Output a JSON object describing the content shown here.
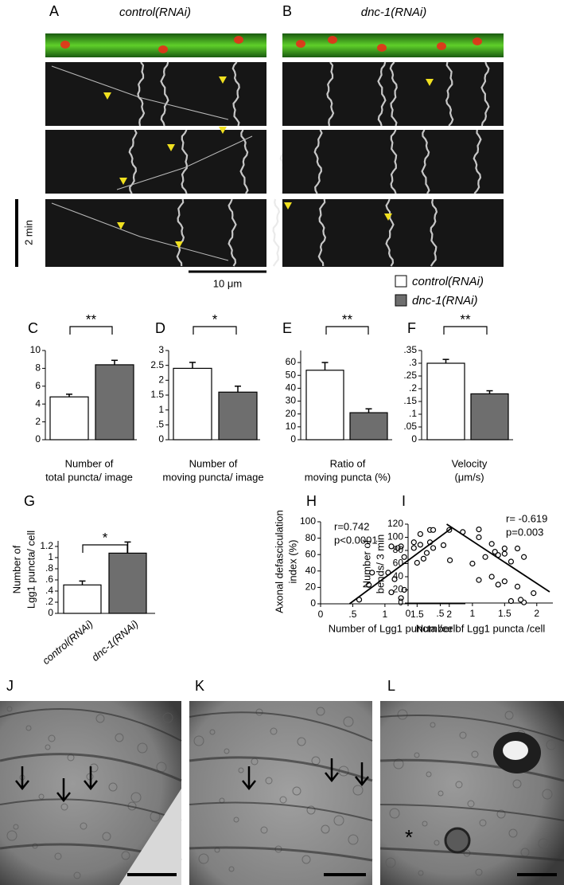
{
  "panel_labels": [
    "A",
    "B",
    "C",
    "D",
    "E",
    "F",
    "G",
    "H",
    "I",
    "J",
    "K",
    "L"
  ],
  "kymographs": {
    "titles": [
      "control(RNAi)",
      "dnc-1(RNAi)"
    ],
    "time_scale": "2 min",
    "length_scale": "10 μm"
  },
  "legend": [
    {
      "name": "control(RNAi)",
      "color": "#ffffff"
    },
    {
      "name": "dnc-1(RNAi)",
      "color": "#6e6e6e"
    }
  ],
  "chart_data": [
    {
      "type": "bar",
      "values": [
        4.8,
        8.4
      ],
      "errors": [
        0.3,
        0.5
      ],
      "colors": [
        "#ffffff",
        "#6e6e6e"
      ],
      "ylim": [
        0,
        10
      ],
      "yticks": [
        0,
        2,
        4,
        6,
        8,
        10
      ],
      "significance": "**",
      "xlabel": [
        "Number of",
        "total puncta/ image"
      ]
    },
    {
      "type": "bar",
      "values": [
        2.4,
        1.6
      ],
      "errors": [
        0.2,
        0.2
      ],
      "colors": [
        "#ffffff",
        "#6e6e6e"
      ],
      "ylim": [
        0,
        3
      ],
      "yticks": [
        0,
        {
          "value": 0.5,
          "label": ".5"
        },
        1,
        1.5,
        2,
        2.5,
        3
      ],
      "significance": "*",
      "xlabel": [
        "Number of",
        "moving puncta/ image"
      ]
    },
    {
      "type": "bar",
      "values": [
        54,
        21
      ],
      "errors": [
        6,
        3
      ],
      "colors": [
        "#ffffff",
        "#6e6e6e"
      ],
      "ylim": [
        0,
        65
      ],
      "yticks": [
        0,
        10,
        20,
        30,
        40,
        50,
        60
      ],
      "significance": "**",
      "xlabel": [
        "Ratio of",
        "moving puncta (%)"
      ]
    },
    {
      "type": "bar",
      "values": [
        0.3,
        0.18
      ],
      "errors": [
        0.015,
        0.012
      ],
      "colors": [
        "#ffffff",
        "#6e6e6e"
      ],
      "ylim": [
        0,
        0.35
      ],
      "yticks": [
        0,
        {
          "value": 0.05,
          "label": ".05"
        },
        {
          "value": 0.1,
          "label": ".1"
        },
        {
          "value": 0.15,
          "label": ".15"
        },
        {
          "value": 0.2,
          "label": ".2"
        },
        {
          "value": 0.25,
          "label": ".25"
        },
        {
          "value": 0.3,
          "label": ".3"
        },
        {
          "value": 0.35,
          "label": ".35"
        }
      ],
      "significance": "**",
      "xlabel": [
        "Velocity",
        "(μm/s)"
      ]
    },
    {
      "type": "bar",
      "categories": [
        "control(RNAi)",
        "dnc-1(RNAi)"
      ],
      "values": [
        0.51,
        1.08
      ],
      "errors": [
        0.07,
        0.2
      ],
      "colors": [
        "#ffffff",
        "#6e6e6e"
      ],
      "ylim": [
        0,
        1.2
      ],
      "yticks": [
        0,
        {
          "value": 0.2,
          "label": ".2"
        },
        {
          "value": 0.4,
          "label": ".4"
        },
        {
          "value": 0.6,
          "label": ".6"
        },
        {
          "value": 0.8,
          "label": ".8"
        },
        1,
        1.2
      ],
      "significance": "*",
      "ylabel": [
        "Number of",
        "Lgg1 puncta/ cell"
      ]
    },
    {
      "type": "scatter",
      "x": [
        1.7,
        1.75,
        2.0,
        1.55,
        1.45,
        1.7,
        1.55,
        1.1,
        1.25,
        1.2,
        1.45,
        1.75,
        1.65,
        1.6,
        1.3,
        0.8,
        1.05,
        0.75,
        1.3,
        1.1,
        0.6,
        1.25,
        1.5,
        1.15
      ],
      "y": [
        90,
        90,
        90,
        85,
        75,
        75,
        72,
        70,
        70,
        68,
        68,
        68,
        62,
        55,
        57,
        38,
        38,
        23,
        17,
        14,
        5,
        7,
        50,
        30
      ],
      "fit": {
        "x": [
          0.45,
          2.05
        ],
        "y": [
          0,
          93
        ]
      },
      "xlim": [
        0,
        2.25
      ],
      "xticks": [
        0,
        {
          "value": 0.5,
          "label": ".5"
        },
        1,
        1.5,
        2
      ],
      "ylim": [
        0,
        100
      ],
      "yticks": [
        0,
        20,
        40,
        60,
        80,
        100
      ],
      "ylabel": [
        "Axonal defasciculation",
        "index (%)"
      ],
      "xlabel": [
        "Number of Lgg1 puncta /cell"
      ],
      "annotations": [
        "r=0.742",
        "p<0.0001"
      ]
    },
    {
      "type": "scatter",
      "x": [
        1.1,
        0.85,
        1.1,
        0.55,
        1.3,
        1.5,
        1.7,
        1.35,
        1.4,
        1.5,
        1.2,
        0.65,
        1.8,
        1.0,
        1.6,
        1.3,
        1.1,
        1.5,
        1.95,
        1.4,
        1.7,
        1.6,
        1.8,
        1.75
      ],
      "y": [
        112,
        108,
        100,
        88,
        90,
        83,
        83,
        78,
        73,
        75,
        70,
        65,
        70,
        60,
        63,
        40,
        35,
        33,
        15,
        28,
        25,
        3,
        1,
        5
      ],
      "fit": {
        "x": [
          0.6,
          2.2
        ],
        "y": [
          120,
          17
        ]
      },
      "xlim": [
        0,
        2.25
      ],
      "xticks": [
        0,
        {
          "value": 0.5,
          "label": ".5"
        },
        1,
        1.5,
        2
      ],
      "ylim": [
        0,
        120
      ],
      "yticks": [
        0,
        20,
        40,
        60,
        80,
        100,
        120
      ],
      "ylabel": [
        "Number of",
        "bends/ 3 min"
      ],
      "xlabel": [
        "Number of Lgg1 puncta /cell"
      ],
      "annotations": [
        "r= -0.619",
        "p=0.003"
      ]
    }
  ],
  "micrographs": {
    "annotation": "*"
  }
}
